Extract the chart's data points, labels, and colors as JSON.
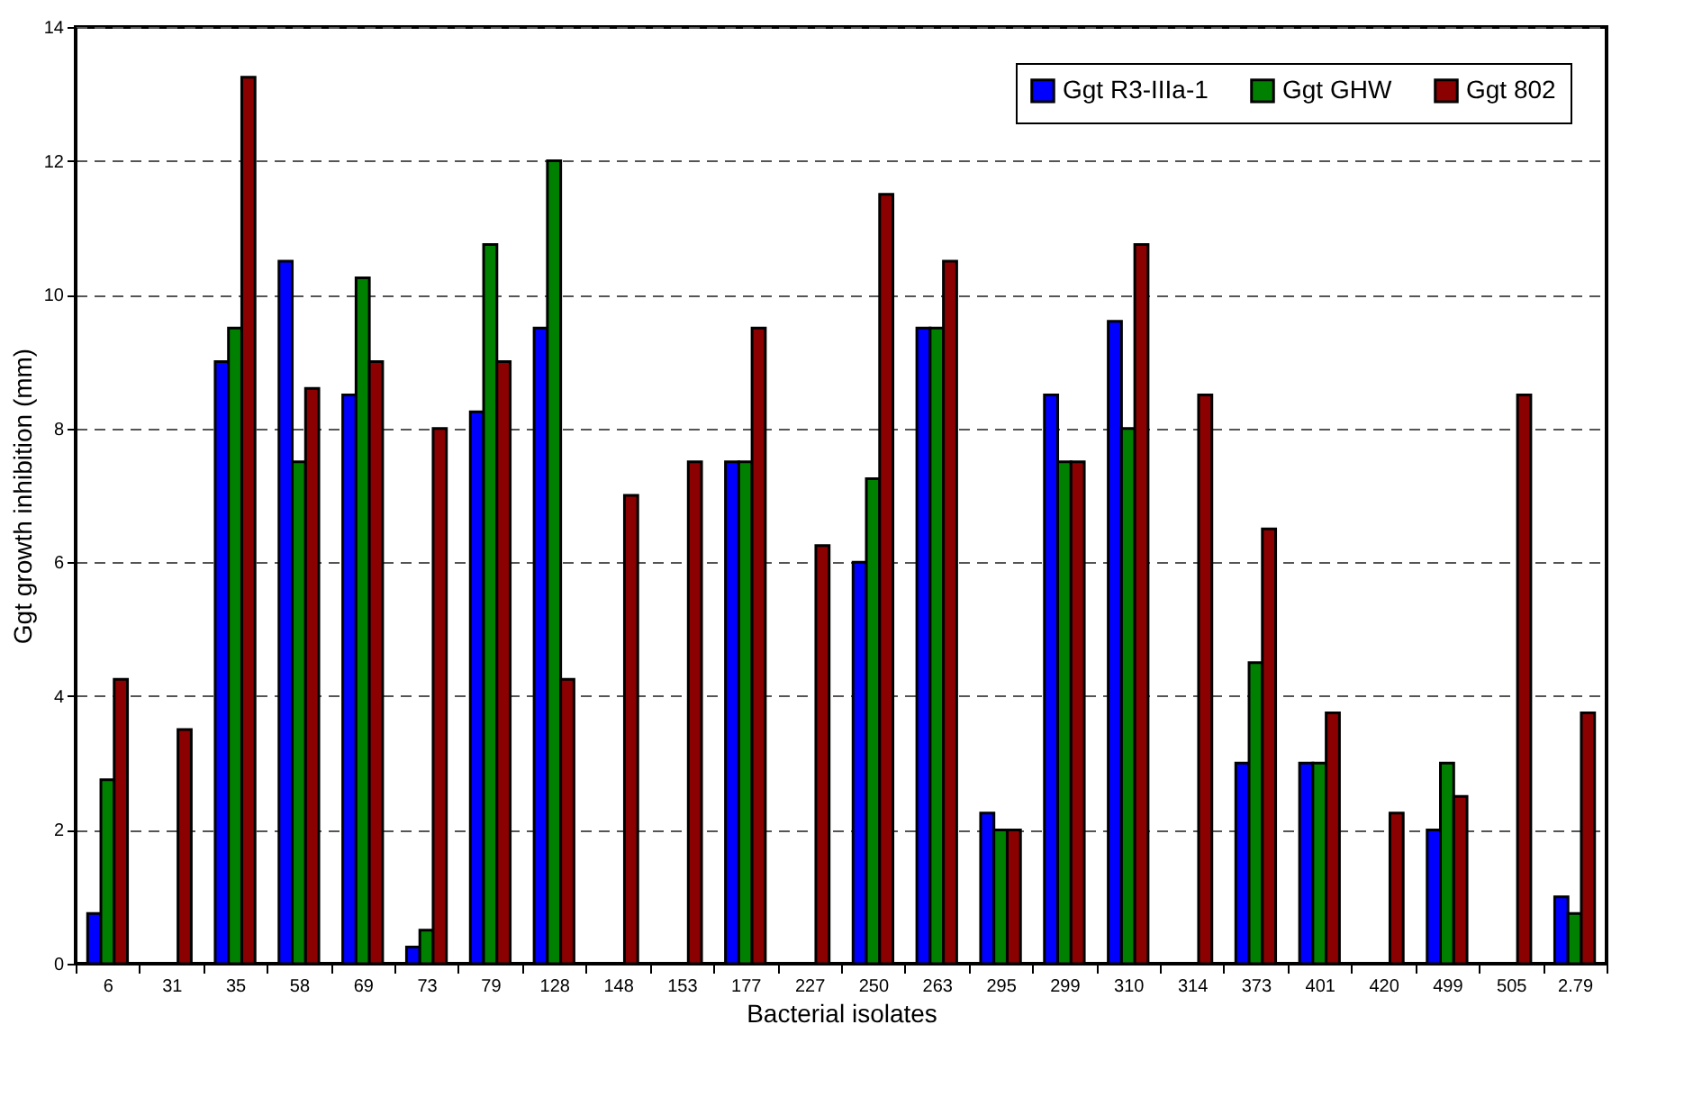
{
  "chart_data": {
    "type": "bar",
    "xlabel": "Bacterial isolates",
    "ylabel": "Ggt growth inhibition (mm)",
    "categories": [
      "6",
      "31",
      "35",
      "58",
      "69",
      "73",
      "79",
      "128",
      "148",
      "153",
      "177",
      "227",
      "250",
      "263",
      "295",
      "299",
      "310",
      "314",
      "373",
      "401",
      "420",
      "499",
      "505",
      "2.79"
    ],
    "series": [
      {
        "name": "Ggt R3-IIIa-1",
        "color": "#0000ff",
        "values": [
          0.75,
          0,
          9,
          10.5,
          8.5,
          0.25,
          8.25,
          9.5,
          0,
          0,
          7.5,
          0,
          6,
          9.5,
          2.25,
          8.5,
          9.6,
          0,
          3,
          3,
          0,
          2,
          0,
          1
        ]
      },
      {
        "name": "Ggt GHW",
        "color": "#008000",
        "values": [
          2.75,
          0,
          9.5,
          7.5,
          10.25,
          0.5,
          10.75,
          12,
          0,
          0,
          7.5,
          0,
          7.25,
          9.5,
          2,
          7.5,
          8,
          0,
          4.5,
          3,
          0,
          3,
          0,
          0.75
        ]
      },
      {
        "name": "Ggt 802",
        "color": "#8b0000",
        "values": [
          4.25,
          3.5,
          13.25,
          8.6,
          9,
          8,
          9,
          4.25,
          7,
          7.5,
          9.5,
          6.25,
          11.5,
          10.5,
          2,
          7.5,
          10.75,
          8.5,
          6.5,
          3.75,
          2.25,
          2.5,
          8.5,
          3.75
        ]
      }
    ],
    "ylim": [
      0,
      14
    ],
    "yticks": [
      0,
      2,
      4,
      6,
      8,
      10,
      12,
      14
    ],
    "grid": "y",
    "legend": "top right"
  }
}
